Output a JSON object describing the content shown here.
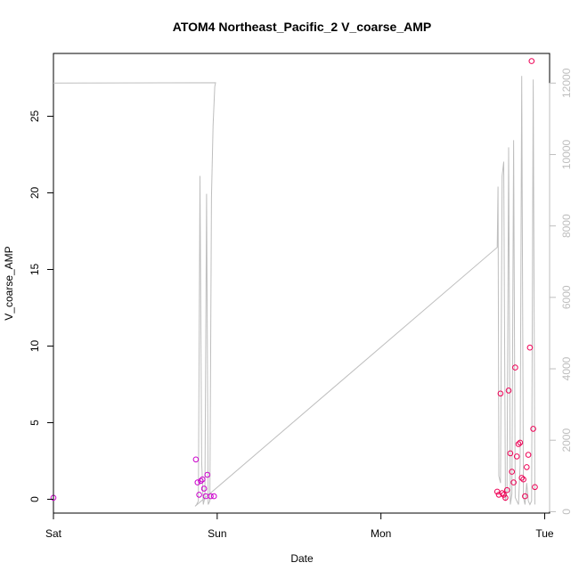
{
  "chart_data": {
    "type": "scatter",
    "title": "ATOM4 Northeast_Pacific_2 V_coarse_AMP",
    "xlabel": "Date",
    "ylabel": "V_coarse_AMP",
    "x_axis": {
      "type": "time",
      "tick_labels": [
        "Sat",
        "Sun",
        "Mon",
        "Tue"
      ],
      "tick_values": [
        0,
        1,
        2,
        3
      ],
      "range": [
        0,
        3.03
      ]
    },
    "y_axis": {
      "range": [
        -0.9,
        29.1
      ],
      "ticks": [
        0,
        5,
        10,
        15,
        20,
        25
      ]
    },
    "y2_axis": {
      "range": [
        -40,
        12830
      ],
      "ticks": [
        0,
        2000,
        4000,
        6000,
        8000,
        10000,
        12000
      ],
      "color": "#bebebe"
    },
    "grid": false,
    "legend": "none",
    "series": [
      {
        "type": "scatter",
        "axis": "left",
        "x": [
          0.0,
          0.87,
          0.88,
          0.89,
          0.9,
          0.91,
          0.92,
          0.93,
          0.94,
          0.96,
          0.98,
          2.71,
          2.72,
          2.73,
          2.74,
          2.75,
          2.76,
          2.77,
          2.78,
          2.79,
          2.8,
          2.81,
          2.82,
          2.83,
          2.84,
          2.85,
          2.86,
          2.87,
          2.88,
          2.89,
          2.9,
          2.91,
          2.92,
          2.93,
          2.94
        ],
        "y": [
          0.1,
          2.6,
          1.1,
          0.3,
          1.2,
          1.3,
          0.7,
          0.2,
          1.6,
          0.2,
          0.2,
          0.5,
          0.3,
          6.9,
          0.4,
          0.3,
          0.1,
          0.6,
          7.1,
          3.0,
          1.8,
          1.1,
          8.6,
          2.8,
          3.6,
          3.7,
          1.4,
          1.3,
          0.2,
          2.1,
          2.9,
          9.9,
          28.6,
          4.6,
          0.8
        ],
        "colors": [
          "#cc00cc",
          "#cc00cc",
          "#cc00cc",
          "#cc00cc",
          "#cc00cc",
          "#cc00cc",
          "#cc00cc",
          "#cc00cc",
          "#cc00cc",
          "#cc00cc",
          "#cc00cc",
          "#ee0055",
          "#ee0055",
          "#ee0055",
          "#ee0055",
          "#ee0055",
          "#ee0055",
          "#ee0055",
          "#ee0055",
          "#ee0055",
          "#ee0055",
          "#ee0055",
          "#ee0055",
          "#ee0055",
          "#ee0055",
          "#ee0055",
          "#ee0055",
          "#ee0055",
          "#ee0055",
          "#ee0055",
          "#ee0055",
          "#ee0055",
          "#ee0055",
          "#ee0055",
          "#ee0055"
        ]
      },
      {
        "type": "line",
        "axis": "right",
        "color": "#bebebe",
        "x": [
          0.0,
          0.99,
          0.985,
          0.975,
          0.965,
          0.955,
          0.945,
          0.935,
          0.925,
          0.915,
          0.905,
          0.895,
          0.885,
          0.875,
          0.865,
          2.71,
          2.715,
          2.72,
          2.73,
          2.74,
          2.75,
          2.76,
          2.77,
          2.78,
          2.79,
          2.8,
          2.81,
          2.82,
          2.83,
          2.84,
          2.85,
          2.86,
          2.87,
          2.88,
          2.89,
          2.9,
          2.91,
          2.92,
          2.93,
          2.94
        ],
        "y": [
          12000,
          12010,
          11900,
          10800,
          8800,
          300,
          200,
          8900,
          400,
          200,
          1400,
          9400,
          300,
          200,
          150,
          7400,
          9100,
          1000,
          800,
          9400,
          9800,
          300,
          600,
          10200,
          200,
          500,
          10400,
          400,
          300,
          200,
          1300,
          12200,
          400,
          200,
          800,
          300,
          200,
          300,
          12100,
          200
        ]
      }
    ]
  }
}
